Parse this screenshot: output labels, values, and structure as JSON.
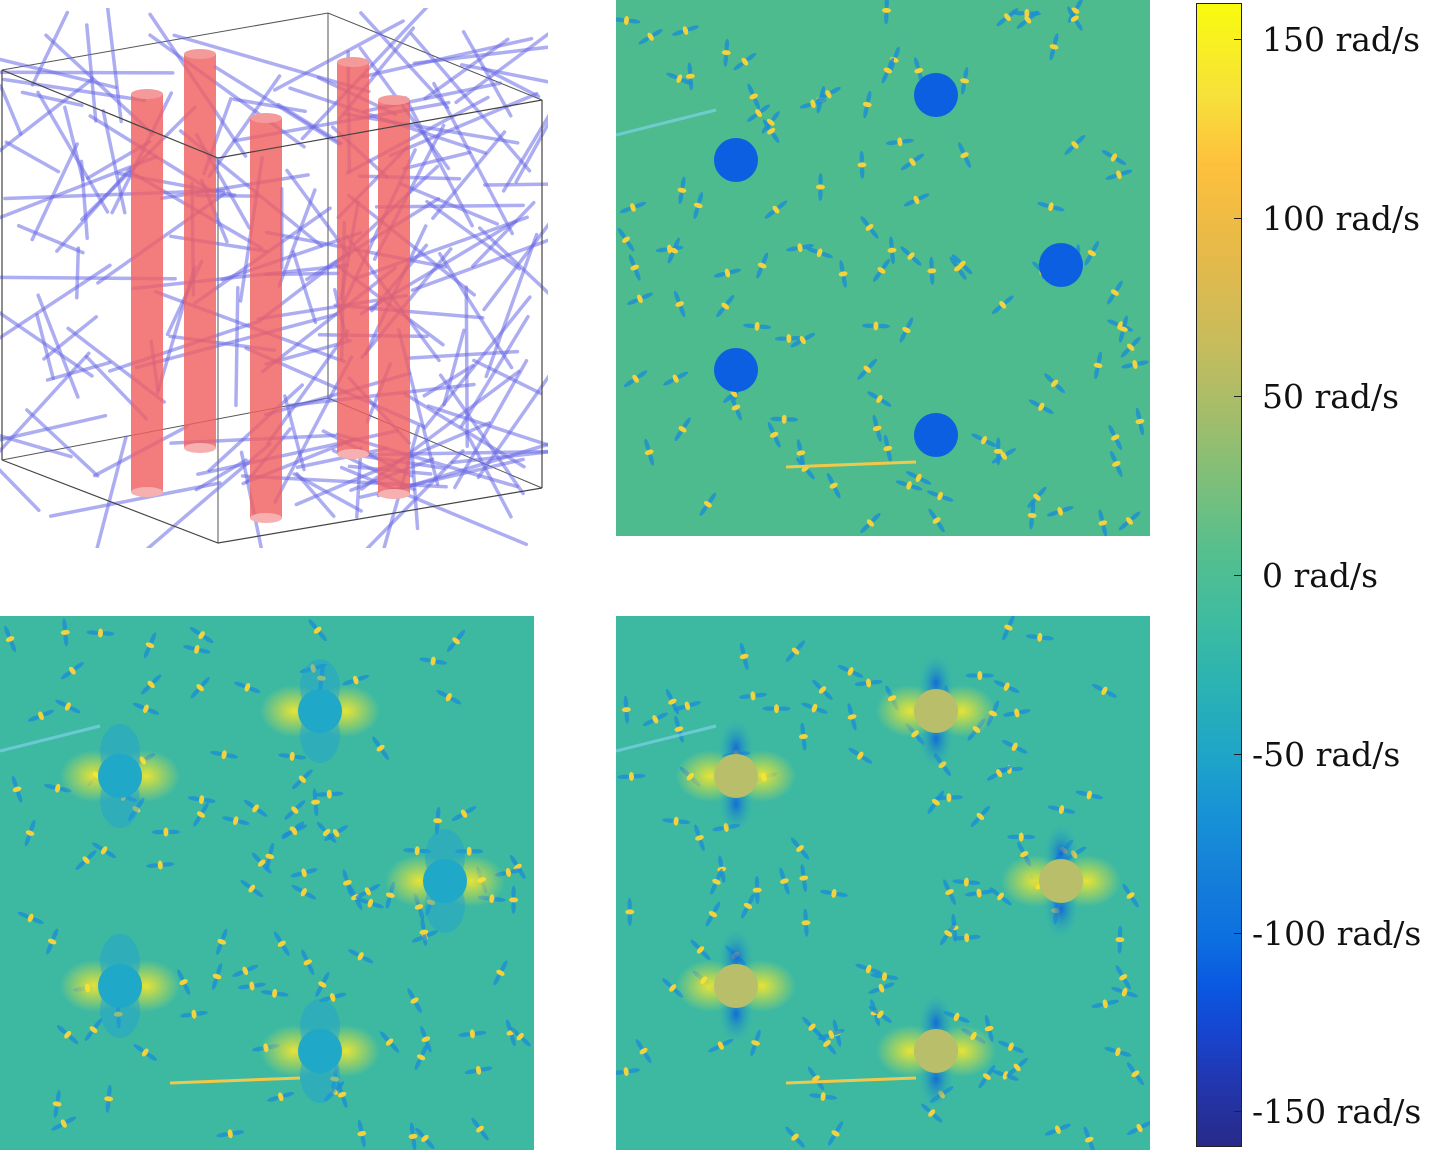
{
  "colorbar": {
    "ticks": [
      {
        "value": 150,
        "label": "150 rad/s"
      },
      {
        "value": 100,
        "label": "100 rad/s"
      },
      {
        "value": 50,
        "label": "50 rad/s"
      },
      {
        "value": 0,
        "label": "0 rad/s"
      },
      {
        "value": -50,
        "label": "-50 rad/s"
      },
      {
        "value": -100,
        "label": "-100 rad/s"
      },
      {
        "value": -150,
        "label": "-150 rad/s"
      }
    ]
  },
  "colors": {
    "background_field": "#4dbb8e",
    "field_low": "#0b5fe0",
    "field_high": "#f9e82a",
    "inclusion_bottom_left": "#1fa8c8",
    "inclusion_bottom_right": "#b8be6a",
    "cylinder": "#f06060",
    "fiber": "#6a6ae6"
  }
}
